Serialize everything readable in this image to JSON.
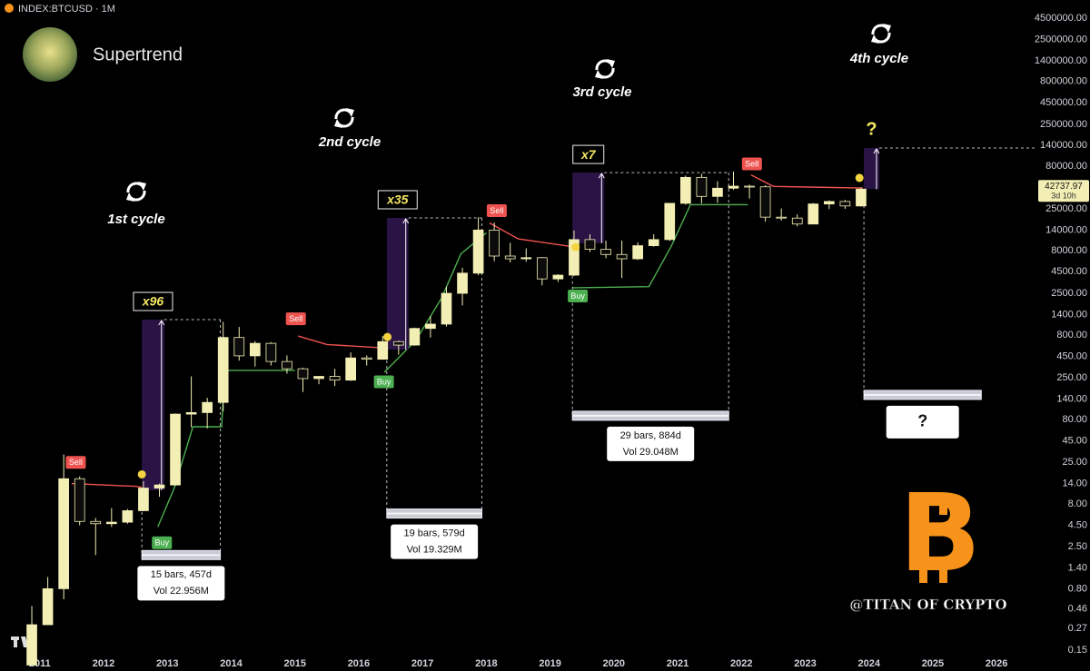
{
  "chart_data": {
    "type": "candlestick",
    "title": "INDEX:BTCUSD · 1M",
    "indicator": "Supertrend",
    "log_scale": true,
    "grid": false,
    "xlim": [
      2010.376,
      2026.61
    ],
    "ylim": [
      0.085,
      7380000
    ],
    "xticks": [
      2011,
      2012,
      2013,
      2014,
      2015,
      2016,
      2017,
      2018,
      2019,
      2020,
      2021,
      2022,
      2023,
      2024,
      2025,
      2026
    ],
    "yticks": [
      {
        "value": 4500000,
        "label": "4500000.00"
      },
      {
        "value": 2500000,
        "label": "2500000.00"
      },
      {
        "value": 1400000,
        "label": "1400000.00"
      },
      {
        "value": 800000,
        "label": "800000.00"
      },
      {
        "value": 450000,
        "label": "450000.00"
      },
      {
        "value": 250000,
        "label": "250000.00"
      },
      {
        "value": 140000,
        "label": "140000.00"
      },
      {
        "value": 80000,
        "label": "80000.00"
      },
      {
        "value": 45000,
        "label": "45000.00"
      },
      {
        "value": 25000,
        "label": "25000.00"
      },
      {
        "value": 14000,
        "label": "14000.00"
      },
      {
        "value": 8000,
        "label": "8000.00"
      },
      {
        "value": 4500,
        "label": "4500.00"
      },
      {
        "value": 2500,
        "label": "2500.00"
      },
      {
        "value": 1400,
        "label": "1400.00"
      },
      {
        "value": 800,
        "label": "800.00"
      },
      {
        "value": 450,
        "label": "450.00"
      },
      {
        "value": 250,
        "label": "250.00"
      },
      {
        "value": 140,
        "label": "140.00"
      },
      {
        "value": 80,
        "label": "80.00"
      },
      {
        "value": 45,
        "label": "45.00"
      },
      {
        "value": 25,
        "label": "25.00"
      },
      {
        "value": 14,
        "label": "14.00"
      },
      {
        "value": 8,
        "label": "8.00"
      },
      {
        "value": 4.5,
        "label": "4.50"
      },
      {
        "value": 2.5,
        "label": "2.50"
      },
      {
        "value": 1.4,
        "label": "1.40"
      },
      {
        "value": 0.8,
        "label": "0.80"
      },
      {
        "value": 0.46,
        "label": "0.46"
      },
      {
        "value": 0.27,
        "label": "0.27"
      },
      {
        "value": 0.15,
        "label": "0.15"
      }
    ],
    "candles": {
      "up_color": "#f3efb4",
      "down_color": "#0b0b0b",
      "x": [
        2010.875,
        2011.125,
        2011.375,
        2011.625,
        2011.875,
        2012.125,
        2012.375,
        2012.625,
        2012.875,
        2013.125,
        2013.375,
        2013.625,
        2013.875,
        2014.125,
        2014.375,
        2014.625,
        2014.875,
        2015.125,
        2015.375,
        2015.625,
        2015.875,
        2016.125,
        2016.375,
        2016.625,
        2016.875,
        2017.125,
        2017.375,
        2017.625,
        2017.875,
        2018.125,
        2018.375,
        2018.625,
        2018.875,
        2019.125,
        2019.375,
        2019.625,
        2019.875,
        2020.125,
        2020.375,
        2020.625,
        2020.875,
        2021.125,
        2021.375,
        2021.625,
        2021.875,
        2022.125,
        2022.375,
        2022.625,
        2022.875,
        2023.125,
        2023.375,
        2023.625,
        2023.875
      ],
      "open": [
        0.1,
        0.3,
        0.8,
        16,
        5,
        4.7,
        4.9,
        6.7,
        12.4,
        13.5,
        93,
        97,
        128,
        750,
        455,
        640,
        390,
        320,
        245,
        260,
        235,
        430,
        415,
        670,
        610,
        960,
        1080,
        2500,
        4330,
        14000,
        6900,
        6400,
        6600,
        3700,
        4100,
        10800,
        8300,
        7200,
        6400,
        9150,
        10800,
        29000,
        58800,
        35000,
        43800,
        46300,
        45500,
        19900,
        19400,
        16500,
        28500,
        30500,
        27000
      ],
      "high": [
        0.5,
        1.1,
        31,
        17,
        5.5,
        7.2,
        7,
        15,
        14,
        95,
        260,
        145,
        1150,
        1000,
        680,
        660,
        460,
        330,
        260,
        320,
        500,
        460,
        780,
        690,
        980,
        1350,
        3000,
        5000,
        19800,
        17200,
        9900,
        8500,
        6700,
        4200,
        13800,
        12500,
        10500,
        10500,
        10000,
        12500,
        29300,
        61800,
        64900,
        53000,
        69000,
        48200,
        47400,
        25200,
        21500,
        29200,
        31400,
        31800,
        44700
      ],
      "low": [
        0.1,
        0.3,
        0.6,
        4.5,
        2.0,
        4.3,
        4.7,
        6.6,
        9.8,
        13.2,
        65,
        63,
        100,
        400,
        340,
        350,
        280,
        170,
        210,
        200,
        230,
        350,
        410,
        470,
        600,
        750,
        1010,
        1800,
        4100,
        6000,
        5800,
        5900,
        3100,
        3400,
        4000,
        7700,
        6500,
        3800,
        6200,
        8900,
        10400,
        28000,
        28800,
        29300,
        42000,
        33000,
        17600,
        18100,
        15500,
        16500,
        24800,
        24900,
        26500
      ],
      "close": [
        0.3,
        0.8,
        16,
        5,
        4.7,
        4.9,
        6.7,
        12.4,
        13.5,
        93,
        97,
        128,
        750,
        455,
        640,
        390,
        320,
        245,
        260,
        235,
        430,
        415,
        670,
        610,
        960,
        1080,
        2500,
        4330,
        14000,
        6900,
        6400,
        6600,
        3700,
        4100,
        10800,
        8300,
        7200,
        6400,
        9150,
        10800,
        29000,
        58800,
        35000,
        43800,
        46300,
        45500,
        19900,
        19400,
        16500,
        28500,
        30500,
        27000,
        42700
      ]
    },
    "supertrend": {
      "up_color": "#4caf50",
      "down_color": "#ef5350",
      "x": [
        2011.5,
        2012.0,
        2012.5,
        2012.8,
        2012.85,
        2013.1,
        2013.4,
        2013.85,
        2013.9,
        2015.0,
        2015.05,
        2015.5,
        2016.3,
        2016.4,
        2016.9,
        2017.3,
        2017.6,
        2018.0,
        2018.05,
        2018.5,
        2019.3,
        2019.35,
        2020.55,
        2020.9,
        2021.2,
        2022.1,
        2022.15,
        2022.5,
        2023.9
      ],
      "up": [
        null,
        null,
        null,
        null,
        4.3,
        12,
        66,
        66,
        306,
        306,
        null,
        null,
        null,
        290,
        700,
        2200,
        7300,
        13000,
        null,
        null,
        null,
        2900,
        3000,
        9000,
        28000,
        28000,
        null,
        null,
        null
      ],
      "down": [
        14,
        13.5,
        13,
        12,
        null,
        null,
        null,
        null,
        null,
        null,
        780,
        620,
        570,
        null,
        null,
        null,
        null,
        null,
        17000,
        11000,
        9000,
        null,
        null,
        null,
        null,
        null,
        63000,
        46000,
        44000
      ]
    },
    "signals": [
      {
        "label": "Sell",
        "x": 2011.55,
        "value": 20
      },
      {
        "label": "Buy",
        "x": 2012.9,
        "value": 3.5
      },
      {
        "label": "Sell",
        "x": 2015.0,
        "value": 1000
      },
      {
        "label": "Buy",
        "x": 2016.38,
        "value": 280
      },
      {
        "label": "Sell",
        "x": 2018.15,
        "value": 19000
      },
      {
        "label": "Buy",
        "x": 2019.42,
        "value": 2900
      },
      {
        "label": "Sell",
        "x": 2022.15,
        "value": 68000
      }
    ],
    "dots": {
      "color": "#f5d442",
      "x": [
        2012.6,
        2016.45,
        2019.4,
        2023.85
      ],
      "values": [
        18,
        760,
        8800,
        58000
      ]
    },
    "cycles": [
      "1st cycle",
      "2nd cycle",
      "3rd cycle",
      "4th cycle"
    ],
    "projections": [
      {
        "label": "x96",
        "boxed": true,
        "x0": 2012.6,
        "x1": 2012.95,
        "low": 11.7,
        "high": 1220,
        "peak_x": 2013.83
      },
      {
        "label": "x35",
        "boxed": true,
        "x0": 2016.44,
        "x1": 2016.78,
        "low": 540,
        "high": 19500,
        "peak_x": 2017.93
      },
      {
        "label": "x7",
        "boxed": true,
        "x0": 2019.35,
        "x1": 2019.85,
        "low": 9800,
        "high": 67000,
        "peak_x": 2021.8
      },
      {
        "label": "?",
        "boxed": false,
        "x0": 2023.92,
        "x1": 2024.16,
        "low": 42700,
        "high": 131000,
        "peak_x": null
      }
    ],
    "measures": [
      {
        "x1": 2013.83,
        "level": 2.0,
        "lines": [
          "15 bars, 457d",
          "Vol 22.956M"
        ]
      },
      {
        "x1": 2017.93,
        "level": 6.2,
        "lines": [
          "19 bars, 579d",
          "Vol 19.329M"
        ]
      },
      {
        "x1": 2021.8,
        "level": 89,
        "lines": [
          "29 bars, 884d",
          "Vol 29.048M"
        ]
      },
      {
        "x1": 2025.76,
        "level": 157,
        "lines": [
          "?"
        ]
      }
    ],
    "last_price": {
      "value": 42737.97,
      "countdown": "3d 10h"
    },
    "watermark": "@TITAN OF CRYPTO"
  }
}
